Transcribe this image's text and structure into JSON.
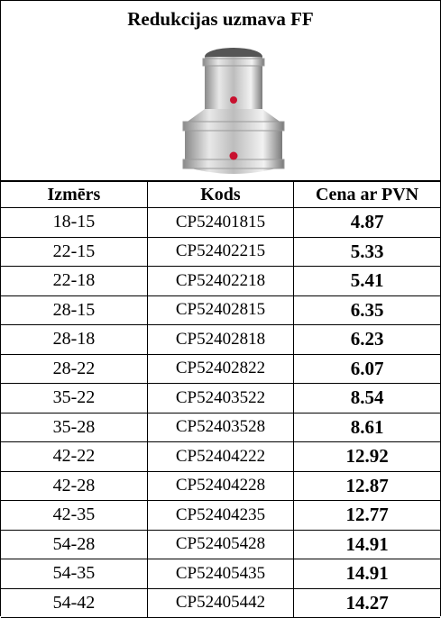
{
  "header": {
    "title": "Redukcijas uzmava FF"
  },
  "table": {
    "columns": [
      "Izmērs",
      "Kods",
      "Cena ar PVN"
    ],
    "rows": [
      [
        "18-15",
        "CP52401815",
        "4.87"
      ],
      [
        "22-15",
        "CP52402215",
        "5.33"
      ],
      [
        "22-18",
        "CP52402218",
        "5.41"
      ],
      [
        "28-15",
        "CP52402815",
        "6.35"
      ],
      [
        "28-18",
        "CP52402818",
        "6.23"
      ],
      [
        "28-22",
        "CP52402822",
        "6.07"
      ],
      [
        "35-22",
        "CP52403522",
        "8.54"
      ],
      [
        "35-28",
        "CP52403528",
        "8.61"
      ],
      [
        "42-22",
        "CP52404222",
        "12.92"
      ],
      [
        "42-28",
        "CP52404228",
        "12.87"
      ],
      [
        "42-35",
        "CP52404235",
        "12.77"
      ],
      [
        "54-28",
        "CP52405428",
        "14.91"
      ],
      [
        "54-35",
        "CP52405435",
        "14.91"
      ],
      [
        "54-42",
        "CP52405442",
        "14.27"
      ]
    ]
  }
}
